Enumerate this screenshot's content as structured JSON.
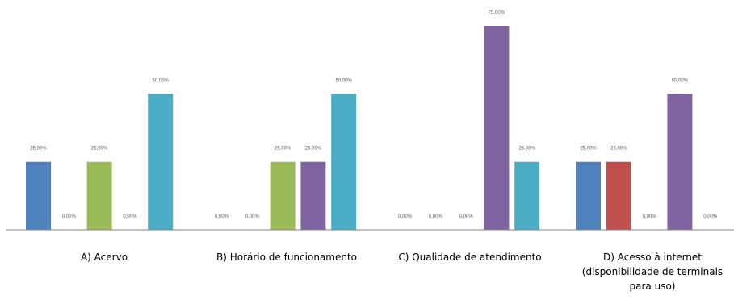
{
  "chart_data": {
    "type": "bar",
    "title": "",
    "xlabel": "",
    "ylabel": "",
    "ylim": [
      0,
      0.75
    ],
    "grid": false,
    "legend": "none",
    "categories": [
      [
        "A) Acervo"
      ],
      [
        "B) Horário de funcionamento"
      ],
      [
        "C) Qualidade de atendimento"
      ],
      [
        "D) Acesso à internet",
        "(disponibilidade de terminais",
        "para uso)"
      ]
    ],
    "series": [
      {
        "values": [
          0.25,
          0.0,
          0.0,
          0.25
        ],
        "color": "#4F81BD",
        "labels": [
          "25,00%",
          "0,00%",
          "0,00%",
          "25,00%"
        ]
      },
      {
        "values": [
          0.0,
          0.0,
          0.0,
          0.25
        ],
        "color": "#C0504D",
        "labels": [
          "0,00%",
          "0,00%",
          "0,00%",
          "25,00%"
        ]
      },
      {
        "values": [
          0.25,
          0.25,
          0.0,
          0.0
        ],
        "color": "#9BBB59",
        "labels": [
          "25,00%",
          "25,00%",
          "0,00%",
          "0,00%"
        ]
      },
      {
        "values": [
          0.0,
          0.25,
          0.75,
          0.5
        ],
        "color": "#8064A2",
        "labels": [
          "0,00%",
          "25,00%",
          "75,00%",
          "50,00%"
        ]
      },
      {
        "values": [
          0.5,
          0.5,
          0.25,
          0.0
        ],
        "color": "#4BACC6",
        "labels": [
          "50,00%",
          "50,00%",
          "25,00%",
          "0,00%"
        ]
      }
    ]
  }
}
